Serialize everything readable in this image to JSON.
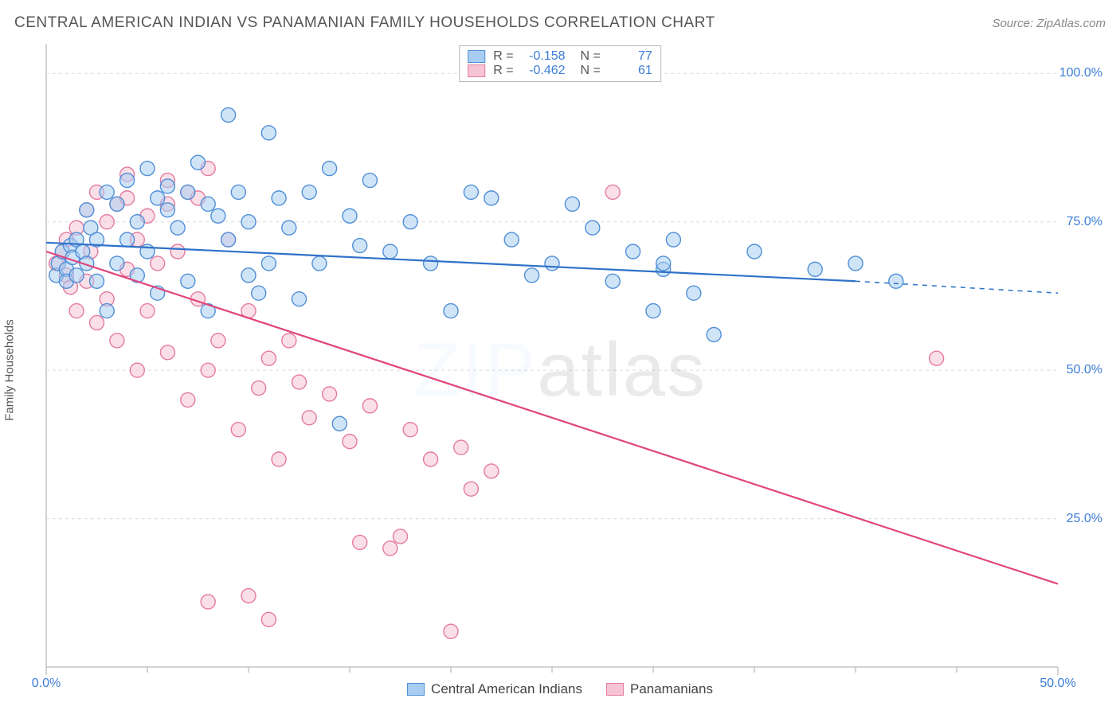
{
  "title": "CENTRAL AMERICAN INDIAN VS PANAMANIAN FAMILY HOUSEHOLDS CORRELATION CHART",
  "source": "Source: ZipAtlas.com",
  "watermark_a": "ZIP",
  "watermark_b": "atlas",
  "ylabel": "Family Households",
  "chart": {
    "type": "scatter",
    "background_color": "#ffffff",
    "grid_color": "#d9d9d9",
    "axis_color": "#aaaaaa",
    "xlim": [
      0,
      50
    ],
    "ylim": [
      0,
      105
    ],
    "xticks": [
      0,
      50
    ],
    "xtick_labels": [
      "0.0%",
      "50.0%"
    ],
    "xticks_minor": [
      5,
      10,
      15,
      20,
      25,
      30,
      35,
      40,
      45
    ],
    "yticks": [
      25,
      50,
      75,
      100
    ],
    "ytick_labels": [
      "25.0%",
      "50.0%",
      "75.0%",
      "100.0%"
    ],
    "marker_radius": 9,
    "marker_opacity": 0.55,
    "line_width": 2.2,
    "series": [
      {
        "id": "central_american_indians",
        "label": "Central American Indians",
        "color_fill": "#a9cdf2",
        "color_stroke": "#4f8fd6",
        "line_color": "#2f72c9",
        "r_value": "-0.158",
        "n_value": "77",
        "trend": {
          "x1": 0,
          "y1": 71.5,
          "x2": 40,
          "y2": 65,
          "dash_from_x": 40,
          "dash_to_x": 50,
          "dash_to_y": 63
        },
        "points": [
          [
            0.5,
            66
          ],
          [
            0.6,
            68
          ],
          [
            0.8,
            70
          ],
          [
            1,
            67
          ],
          [
            1,
            65
          ],
          [
            1.2,
            71
          ],
          [
            1.3,
            69
          ],
          [
            1.5,
            72
          ],
          [
            1.5,
            66
          ],
          [
            1.8,
            70
          ],
          [
            2,
            68
          ],
          [
            2,
            77
          ],
          [
            2.2,
            74
          ],
          [
            2.5,
            72
          ],
          [
            2.5,
            65
          ],
          [
            3,
            80
          ],
          [
            3,
            60
          ],
          [
            3.5,
            78
          ],
          [
            3.5,
            68
          ],
          [
            4,
            82
          ],
          [
            4,
            72
          ],
          [
            4.5,
            75
          ],
          [
            4.5,
            66
          ],
          [
            5,
            84
          ],
          [
            5,
            70
          ],
          [
            5.5,
            79
          ],
          [
            5.5,
            63
          ],
          [
            6,
            77
          ],
          [
            6,
            81
          ],
          [
            6.5,
            74
          ],
          [
            7,
            80
          ],
          [
            7,
            65
          ],
          [
            7.5,
            85
          ],
          [
            8,
            78
          ],
          [
            8,
            60
          ],
          [
            8.5,
            76
          ],
          [
            9,
            93
          ],
          [
            9,
            72
          ],
          [
            9.5,
            80
          ],
          [
            10,
            66
          ],
          [
            10,
            75
          ],
          [
            10.5,
            63
          ],
          [
            11,
            90
          ],
          [
            11,
            68
          ],
          [
            11.5,
            79
          ],
          [
            12,
            74
          ],
          [
            12.5,
            62
          ],
          [
            13,
            80
          ],
          [
            13.5,
            68
          ],
          [
            14,
            84
          ],
          [
            14.5,
            41
          ],
          [
            15,
            76
          ],
          [
            15.5,
            71
          ],
          [
            16,
            82
          ],
          [
            17,
            70
          ],
          [
            18,
            75
          ],
          [
            19,
            68
          ],
          [
            20,
            60
          ],
          [
            21,
            80
          ],
          [
            22,
            79
          ],
          [
            23,
            72
          ],
          [
            24,
            66
          ],
          [
            25,
            68
          ],
          [
            26,
            78
          ],
          [
            27,
            74
          ],
          [
            28,
            65
          ],
          [
            29,
            70
          ],
          [
            30,
            60
          ],
          [
            30.5,
            67
          ],
          [
            30.5,
            68
          ],
          [
            31,
            72
          ],
          [
            32,
            63
          ],
          [
            33,
            56
          ],
          [
            35,
            70
          ],
          [
            38,
            67
          ],
          [
            40,
            68
          ],
          [
            42,
            65
          ]
        ]
      },
      {
        "id": "panamanians",
        "label": "Panamanians",
        "color_fill": "#f6c4d5",
        "color_stroke": "#e57aa1",
        "line_color": "#e0457c",
        "r_value": "-0.462",
        "n_value": "61",
        "trend": {
          "x1": 0,
          "y1": 70,
          "x2": 50,
          "y2": 14
        },
        "points": [
          [
            0.5,
            68
          ],
          [
            0.8,
            70
          ],
          [
            1,
            66
          ],
          [
            1,
            72
          ],
          [
            1.2,
            64
          ],
          [
            1.5,
            74
          ],
          [
            1.5,
            60
          ],
          [
            2,
            77
          ],
          [
            2,
            65
          ],
          [
            2.2,
            70
          ],
          [
            2.5,
            80
          ],
          [
            2.5,
            58
          ],
          [
            3,
            75
          ],
          [
            3,
            62
          ],
          [
            3.5,
            78
          ],
          [
            3.5,
            55
          ],
          [
            4,
            83
          ],
          [
            4,
            67
          ],
          [
            4.5,
            72
          ],
          [
            4.5,
            50
          ],
          [
            5,
            76
          ],
          [
            5,
            60
          ],
          [
            5.5,
            68
          ],
          [
            6,
            82
          ],
          [
            6,
            53
          ],
          [
            6.5,
            70
          ],
          [
            7,
            80
          ],
          [
            7,
            45
          ],
          [
            7.5,
            62
          ],
          [
            8,
            84
          ],
          [
            8,
            50
          ],
          [
            8.5,
            55
          ],
          [
            9,
            72
          ],
          [
            9.5,
            40
          ],
          [
            10,
            60
          ],
          [
            10.5,
            47
          ],
          [
            11,
            52
          ],
          [
            11.5,
            35
          ],
          [
            12,
            55
          ],
          [
            12.5,
            48
          ],
          [
            13,
            42
          ],
          [
            14,
            46
          ],
          [
            15,
            38
          ],
          [
            15.5,
            21
          ],
          [
            16,
            44
          ],
          [
            17,
            20
          ],
          [
            17.5,
            22
          ],
          [
            18,
            40
          ],
          [
            19,
            35
          ],
          [
            20,
            6
          ],
          [
            20.5,
            37
          ],
          [
            21,
            30
          ],
          [
            22,
            33
          ],
          [
            8,
            11
          ],
          [
            10,
            12
          ],
          [
            11,
            8
          ],
          [
            28,
            80
          ],
          [
            44,
            52
          ],
          [
            7.5,
            79
          ],
          [
            6,
            78
          ],
          [
            4,
            79
          ]
        ]
      }
    ]
  },
  "legend_bottom": [
    {
      "label": "Central American Indians",
      "fill": "#a9cdf2",
      "stroke": "#4f8fd6"
    },
    {
      "label": "Panamanians",
      "fill": "#f6c4d5",
      "stroke": "#e57aa1"
    }
  ]
}
